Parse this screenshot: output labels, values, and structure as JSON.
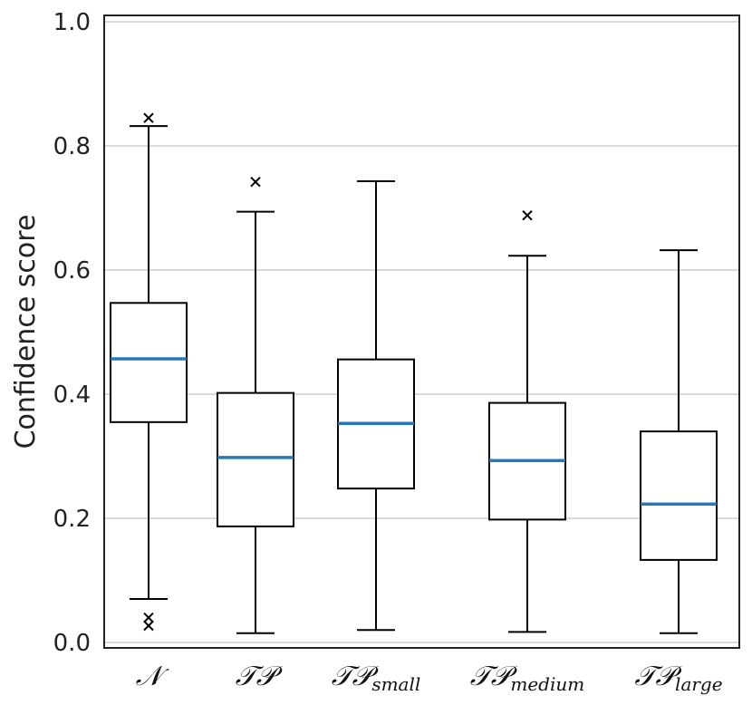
{
  "chart_data": {
    "type": "boxplot",
    "title": "",
    "xlabel": "",
    "ylabel": "Confidence score",
    "ylim": [
      0.0,
      1.0
    ],
    "yticks": [
      0.0,
      0.2,
      0.4,
      0.6,
      0.8,
      1.0
    ],
    "ytick_labels": [
      "0.0",
      "0.2",
      "0.4",
      "0.6",
      "0.8",
      "1.0"
    ],
    "grid": "horizontal",
    "colors": {
      "median": "#2878b5",
      "box": "#000000",
      "grid": "#d9d9d9",
      "frame": "#222222"
    },
    "categories": [
      {
        "main": "𝒩",
        "sub": ""
      },
      {
        "main": "𝒯𝒫",
        "sub": ""
      },
      {
        "main": "𝒯𝒫",
        "sub": "small"
      },
      {
        "main": "𝒯𝒫",
        "sub": "medium"
      },
      {
        "main": "𝒯𝒫",
        "sub": "large"
      }
    ],
    "boxes": [
      {
        "whisker_low": 0.07,
        "q1": 0.355,
        "median": 0.457,
        "q3": 0.547,
        "whisker_high": 0.832,
        "outliers": [
          0.845,
          0.04,
          0.027
        ]
      },
      {
        "whisker_low": 0.015,
        "q1": 0.187,
        "median": 0.298,
        "q3": 0.402,
        "whisker_high": 0.694,
        "outliers": [
          0.742
        ]
      },
      {
        "whisker_low": 0.02,
        "q1": 0.248,
        "median": 0.353,
        "q3": 0.456,
        "whisker_high": 0.743,
        "outliers": []
      },
      {
        "whisker_low": 0.017,
        "q1": 0.198,
        "median": 0.293,
        "q3": 0.386,
        "whisker_high": 0.623,
        "outliers": [
          0.688
        ]
      },
      {
        "whisker_low": 0.015,
        "q1": 0.133,
        "median": 0.223,
        "q3": 0.34,
        "whisker_high": 0.632,
        "outliers": []
      }
    ]
  }
}
